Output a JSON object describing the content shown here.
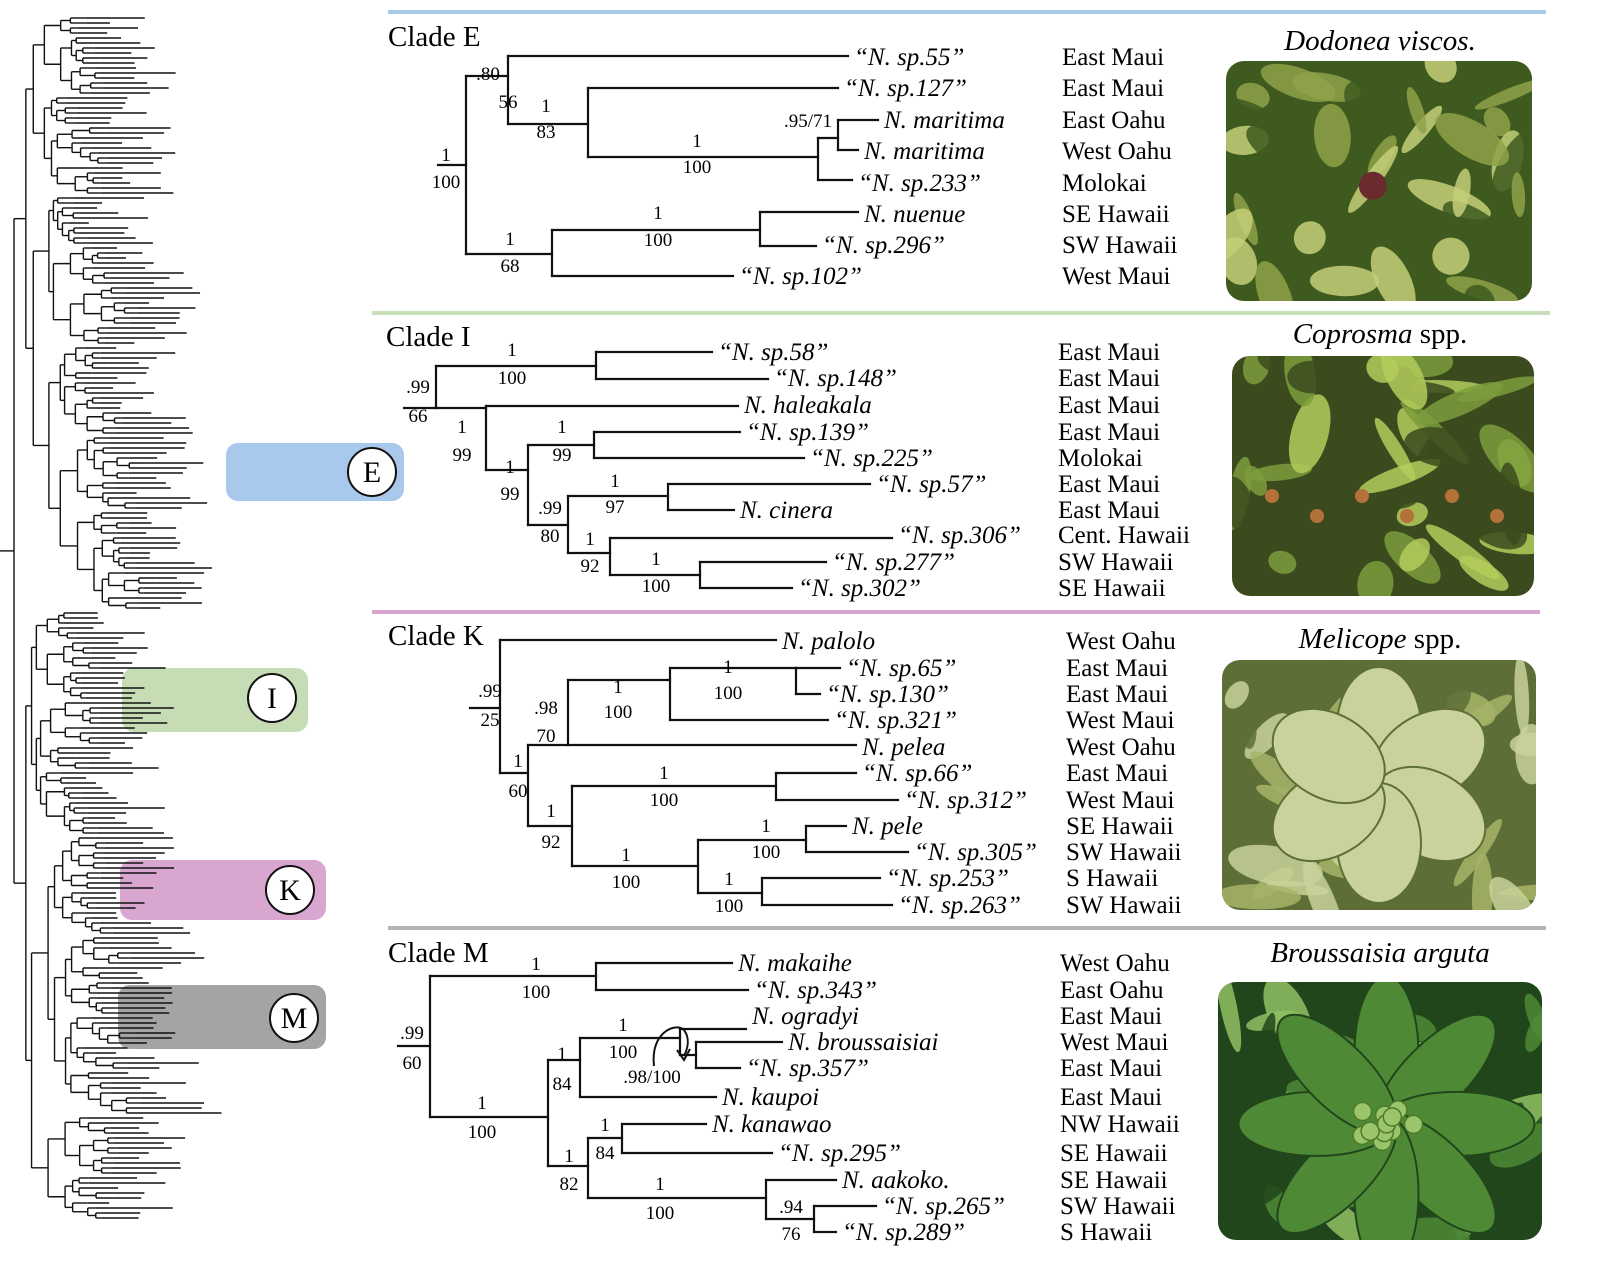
{
  "clades": [
    {
      "key": "E",
      "title": "Clade E",
      "host_plant": {
        "genus": "Dodonea viscos.",
        "suffix": ""
      },
      "photo_palette": [
        "#8fa24a",
        "#3e5a1e",
        "#c4cf78"
      ],
      "taxa": [
        {
          "name": "“N. sp.55”",
          "locality": "East Maui"
        },
        {
          "name": "“N. sp.127”",
          "locality": "East Maui"
        },
        {
          "name": "N. maritima",
          "locality": "East Oahu"
        },
        {
          "name": "N. maritima",
          "locality": "West Oahu"
        },
        {
          "name": "“N. sp.233”",
          "locality": "Molokai"
        },
        {
          "name": "N. nuenue",
          "locality": "SE Hawaii"
        },
        {
          "name": "“N. sp.296”",
          "locality": "SW Hawaii"
        },
        {
          "name": "“N. sp.102”",
          "locality": "West Maui"
        }
      ],
      "support": [
        {
          "pp": ".80",
          "bs": "56"
        },
        {
          "pp": "1",
          "bs": "83"
        },
        {
          "pp": ".95/71",
          "bs": ""
        },
        {
          "pp": "1",
          "bs": "100"
        },
        {
          "pp": "1",
          "bs": "100"
        },
        {
          "pp": "1",
          "bs": "100"
        },
        {
          "pp": "1",
          "bs": "68"
        }
      ]
    },
    {
      "key": "I",
      "title": "Clade I",
      "host_plant": {
        "genus": "Coprosma",
        "suffix": " spp."
      },
      "photo_palette": [
        "#7d9c3c",
        "#3b4b1d",
        "#b4cd5c"
      ],
      "taxa": [
        {
          "name": "“N. sp.58”",
          "locality": "East Maui"
        },
        {
          "name": "“N. sp.148”",
          "locality": "East Maui"
        },
        {
          "name": "N. haleakala",
          "locality": "East Maui"
        },
        {
          "name": "“N. sp.139”",
          "locality": "East Maui"
        },
        {
          "name": "“N. sp.225”",
          "locality": "Molokai"
        },
        {
          "name": "“N. sp.57”",
          "locality": "East Maui"
        },
        {
          "name": "N. cinera",
          "locality": "East Maui"
        },
        {
          "name": "“N. sp.306”",
          "locality": "Cent. Hawaii"
        },
        {
          "name": "“N. sp.277”",
          "locality": "SW Hawaii"
        },
        {
          "name": "“N. sp.302”",
          "locality": "SE Hawaii"
        }
      ],
      "support": [
        {
          "pp": "1",
          "bs": "100"
        },
        {
          "pp": ".99",
          "bs": "66"
        },
        {
          "pp": "1",
          "bs": "99"
        },
        {
          "pp": "1",
          "bs": "99"
        },
        {
          "pp": "1",
          "bs": "99"
        },
        {
          "pp": "1",
          "bs": "97"
        },
        {
          "pp": ".99",
          "bs": "80"
        },
        {
          "pp": "1",
          "bs": "92"
        },
        {
          "pp": "1",
          "bs": "100"
        }
      ]
    },
    {
      "key": "K",
      "title": "Clade K",
      "host_plant": {
        "genus": "Melicope",
        "suffix": " spp."
      },
      "photo_palette": [
        "#a6b468",
        "#5d6e37",
        "#c8d29a"
      ],
      "taxa": [
        {
          "name": "N. palolo",
          "locality": "West Oahu"
        },
        {
          "name": "“N. sp.65”",
          "locality": "East Maui"
        },
        {
          "name": "“N. sp.130”",
          "locality": "East Maui"
        },
        {
          "name": "“N. sp.321”",
          "locality": "West Maui"
        },
        {
          "name": "N. pelea",
          "locality": "West Oahu"
        },
        {
          "name": "“N. sp.66”",
          "locality": "East Maui"
        },
        {
          "name": "“N. sp.312”",
          "locality": "West Maui"
        },
        {
          "name": "N. pele",
          "locality": "SE Hawaii"
        },
        {
          "name": "“N. sp.305”",
          "locality": "SW Hawaii"
        },
        {
          "name": "“N. sp.253”",
          "locality": "S Hawaii"
        },
        {
          "name": "“N. sp.263”",
          "locality": "SW Hawaii"
        }
      ],
      "support": [
        {
          "pp": ".99",
          "bs": "25"
        },
        {
          "pp": ".98",
          "bs": "70"
        },
        {
          "pp": "1",
          "bs": "100"
        },
        {
          "pp": "1",
          "bs": "100"
        },
        {
          "pp": "1",
          "bs": "60"
        },
        {
          "pp": "1",
          "bs": "92"
        },
        {
          "pp": "1",
          "bs": "100"
        },
        {
          "pp": "1",
          "bs": "100"
        },
        {
          "pp": "1",
          "bs": "100"
        },
        {
          "pp": "1",
          "bs": "100"
        }
      ]
    },
    {
      "key": "M",
      "title": "Clade M",
      "host_plant": {
        "genus": "Broussaisia arguta",
        "suffix": ""
      },
      "photo_palette": [
        "#4e8a36",
        "#22461b",
        "#8fbf63"
      ],
      "taxa": [
        {
          "name": "N. makaihe",
          "locality": "West Oahu"
        },
        {
          "name": "“N. sp.343”",
          "locality": "East Oahu"
        },
        {
          "name": "N. ogradyi",
          "locality": "East Maui"
        },
        {
          "name": "N. broussaisiai",
          "locality": "West Maui"
        },
        {
          "name": "“N. sp.357”",
          "locality": "East Maui"
        },
        {
          "name": "N. kaupoi",
          "locality": "East Maui"
        },
        {
          "name": "N. kanawao",
          "locality": "NW Hawaii"
        },
        {
          "name": "“N. sp.295”",
          "locality": "SE Hawaii"
        },
        {
          "name": "N. aakoko.",
          "locality": "SE Hawaii"
        },
        {
          "name": "“N. sp.265”",
          "locality": "SW Hawaii"
        },
        {
          "name": "“N. sp.289”",
          "locality": "S Hawaii"
        }
      ],
      "support": [
        {
          "pp": "1",
          "bs": "100"
        },
        {
          "pp": ".99",
          "bs": "60"
        },
        {
          "pp": "1",
          "bs": "100"
        },
        {
          "pp": ".98/100",
          "bs": ""
        },
        {
          "pp": "1",
          "bs": "84"
        },
        {
          "pp": "1",
          "bs": "100"
        },
        {
          "pp": "1",
          "bs": "84"
        },
        {
          "pp": "1",
          "bs": "82"
        },
        {
          "pp": "1",
          "bs": "100"
        },
        {
          "pp": ".94",
          "bs": "76"
        }
      ]
    }
  ],
  "overview_tags": [
    "E",
    "I",
    "K",
    "M"
  ],
  "colors": {
    "clade_E": "#a8c8ec",
    "clade_I": "#c6dcb4",
    "clade_K": "#d9a6cf",
    "clade_M": "#a4a4a4",
    "rule_E": "#a9cbea",
    "rule_I": "#c7e0b9",
    "rule_K": "#d8a5cd",
    "rule_M": "#b3b3b3"
  }
}
